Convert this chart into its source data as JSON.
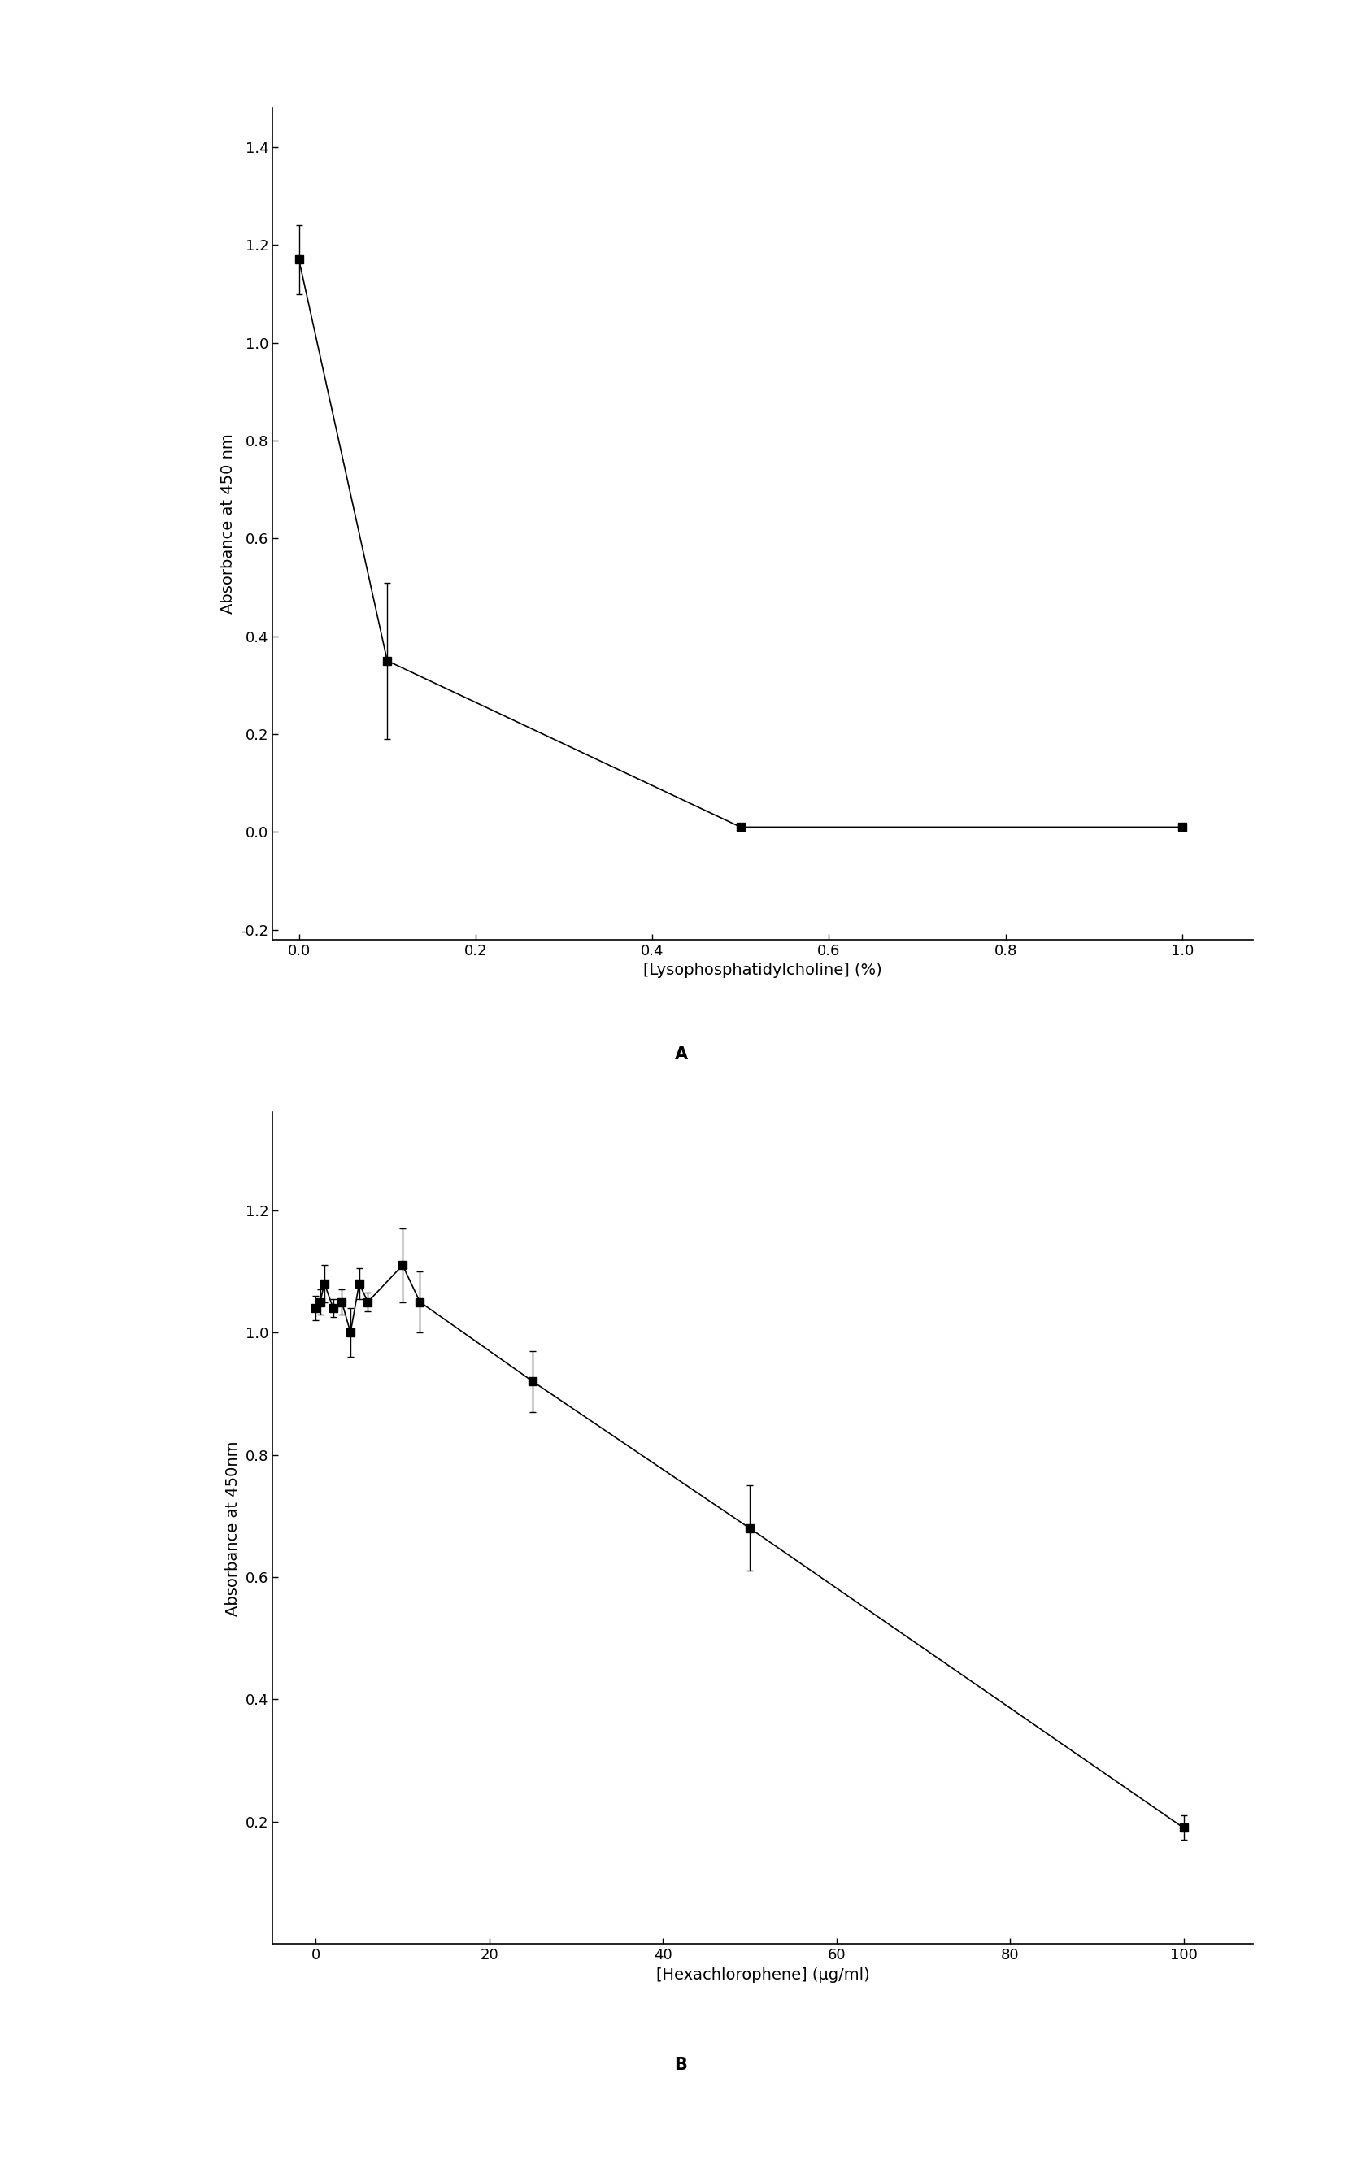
{
  "panel_A": {
    "x": [
      0.0,
      0.1,
      0.5,
      1.0
    ],
    "y": [
      1.17,
      0.35,
      0.01,
      0.01
    ],
    "yerr": [
      0.07,
      0.16,
      0.005,
      0.005
    ],
    "xlabel": "[Lysophosphatidylcholine] (%)",
    "ylabel": "Absorbance at 450 nm",
    "xlim": [
      -0.03,
      1.08
    ],
    "ylim": [
      -0.22,
      1.48
    ],
    "xticks": [
      0.0,
      0.2,
      0.4,
      0.6,
      0.8,
      1.0
    ],
    "yticks": [
      -0.2,
      0.0,
      0.2,
      0.4,
      0.6,
      0.8,
      1.0,
      1.2,
      1.4
    ],
    "label": "A"
  },
  "panel_B": {
    "x": [
      0,
      0.5,
      1,
      2,
      3,
      4,
      5,
      6,
      10,
      12,
      25,
      50,
      100
    ],
    "y": [
      1.04,
      1.05,
      1.08,
      1.04,
      1.05,
      1.0,
      1.08,
      1.05,
      1.11,
      1.05,
      0.92,
      0.68,
      0.19
    ],
    "yerr": [
      0.02,
      0.02,
      0.03,
      0.015,
      0.02,
      0.04,
      0.025,
      0.015,
      0.06,
      0.05,
      0.05,
      0.07,
      0.02
    ],
    "xlabel": "[Hexachlorophene] (μg/ml)",
    "ylabel": "Absorbance at 450nm",
    "xlim": [
      -5,
      108
    ],
    "ylim": [
      0.0,
      1.36
    ],
    "xticks": [
      0,
      20,
      40,
      60,
      80,
      100
    ],
    "yticks": [
      0.2,
      0.4,
      0.6,
      0.8,
      1.0,
      1.2
    ],
    "label": "B"
  },
  "marker": "s",
  "markersize": 7,
  "markerfacecolor": "black",
  "linecolor": "black",
  "linewidth": 1.2,
  "elinewidth": 1.0,
  "capsize": 3,
  "background_color": "white",
  "label_fontsize": 14,
  "tick_fontsize": 13,
  "panel_label_fontsize": 15
}
